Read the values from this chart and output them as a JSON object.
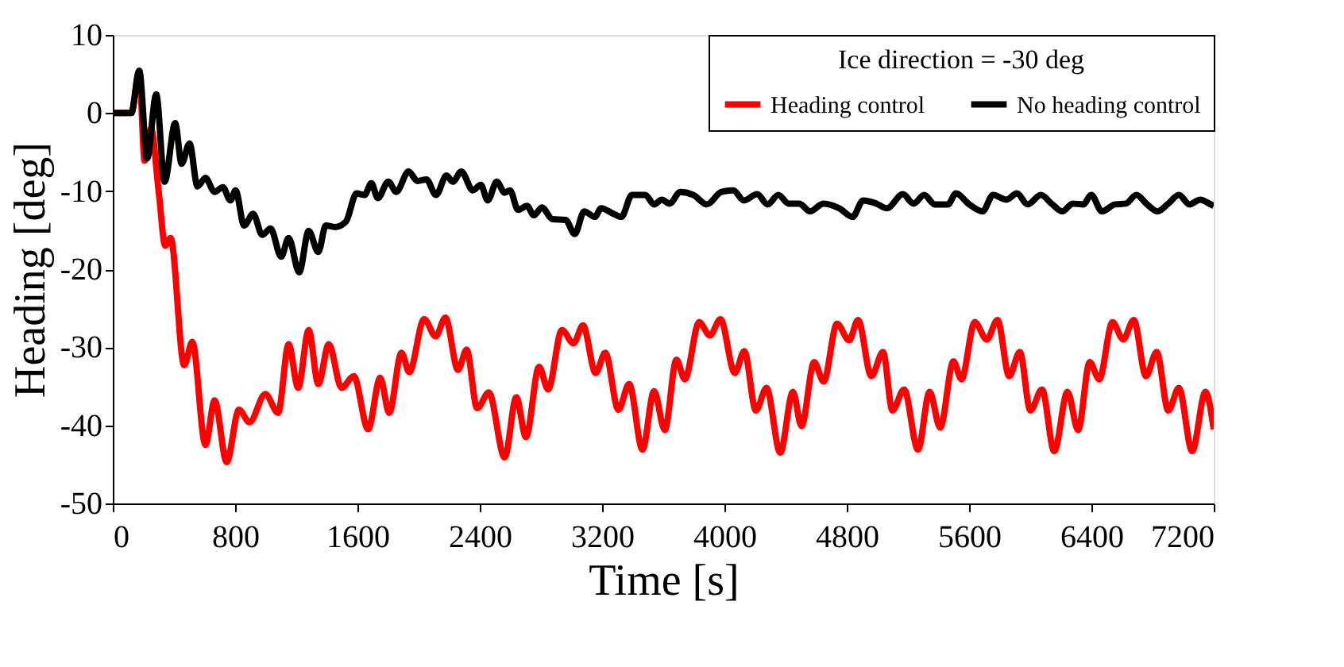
{
  "chart_data": {
    "type": "line",
    "xlabel": "Time [s]",
    "ylabel": "Heading [deg]",
    "legend_title": "Ice direction = -30 deg",
    "legend": "top right",
    "grid": false,
    "line_style": "solid",
    "marker": "none",
    "xlim": [
      0,
      7200
    ],
    "xticks": [
      0,
      800,
      1600,
      2400,
      3200,
      4000,
      4800,
      5600,
      6400,
      7200
    ],
    "ylim": [
      -50,
      10
    ],
    "yticks": [
      -50,
      -40,
      -30,
      -20,
      -10,
      0,
      10
    ],
    "series": [
      {
        "name": "Heading control",
        "color": "#ff0000",
        "x": [
          0,
          121,
          173,
          208,
          250,
          300,
          343,
          378,
          467,
          520,
          606,
          666,
          745,
          825,
          894,
          998,
          1081,
          1150,
          1212,
          1281,
          1344,
          1413,
          1496,
          1576,
          1670,
          1749,
          1808,
          1888,
          1939,
          2036,
          2112,
          2175,
          2258,
          2314,
          2383,
          2459,
          2563,
          2639,
          2702,
          2788,
          2847,
          2937,
          3013,
          3075,
          3158,
          3221,
          3307,
          3377,
          3464,
          3540,
          3610,
          3686,
          3741,
          3835,
          3905,
          3974,
          4068,
          4130,
          4206,
          4275,
          4365,
          4448,
          4504,
          4587,
          4649,
          4736,
          4816,
          4874,
          4961,
          5037,
          5099,
          5175,
          5266,
          5342,
          5411,
          5498,
          5550,
          5637,
          5716,
          5786,
          5862,
          5932,
          6001,
          6077,
          6157,
          6244,
          6313,
          6389,
          6451,
          6538,
          6608,
          6677,
          6757,
          6827,
          6903,
          6972,
          7059,
          7146,
          7200
        ],
        "values": [
          0,
          0,
          5.4,
          -6.1,
          -2,
          -10,
          -17,
          -16,
          -32.3,
          -29.3,
          -42.5,
          -36.8,
          -44.7,
          -38,
          -39.6,
          -36,
          -38.4,
          -29.6,
          -35.2,
          -27.8,
          -34.7,
          -29.6,
          -35.2,
          -33.7,
          -40.5,
          -33.9,
          -38.4,
          -30.7,
          -33.2,
          -26.4,
          -28.6,
          -26.2,
          -32.9,
          -30.3,
          -37.8,
          -35.8,
          -44.1,
          -36.4,
          -41.5,
          -32.5,
          -35.4,
          -27.8,
          -29.5,
          -27.2,
          -33.3,
          -30.7,
          -38,
          -34.7,
          -43.1,
          -35.6,
          -40.6,
          -31.6,
          -34.1,
          -26.8,
          -28.5,
          -26.4,
          -33.3,
          -30.5,
          -38.1,
          -35.2,
          -43.5,
          -35.7,
          -40.1,
          -31.9,
          -34.4,
          -27,
          -29.1,
          -26.5,
          -33.7,
          -30.6,
          -38.1,
          -35.4,
          -43.1,
          -35.7,
          -40.3,
          -31.8,
          -34.1,
          -26.8,
          -29,
          -26.5,
          -33.7,
          -30.6,
          -38.1,
          -35.4,
          -43.3,
          -35.7,
          -40.6,
          -31.9,
          -34.1,
          -26.8,
          -29,
          -26.5,
          -33.7,
          -30.6,
          -38.1,
          -35.2,
          -43.3,
          -35.7,
          -40.5
        ]
      },
      {
        "name": "No heading control",
        "color": "#000000",
        "x": [
          0,
          121,
          173,
          225,
          284,
          339,
          408,
          450,
          502,
          554,
          606,
          665,
          720,
          769,
          803,
          859,
          918,
          977,
          1032,
          1101,
          1150,
          1219,
          1281,
          1344,
          1393,
          1455,
          1525,
          1594,
          1646,
          1691,
          1733,
          1802,
          1854,
          1934,
          1993,
          2051,
          2114,
          2182,
          2224,
          2279,
          2355,
          2407,
          2452,
          2511,
          2563,
          2598,
          2650,
          2709,
          2754,
          2806,
          2875,
          2962,
          3021,
          3083,
          3152,
          3194,
          3274,
          3326,
          3395,
          3482,
          3540,
          3590,
          3642,
          3711,
          3798,
          3884,
          3981,
          4058,
          4127,
          4214,
          4283,
          4352,
          4421,
          4490,
          4560,
          4647,
          4751,
          4838,
          4907,
          4994,
          5063,
          5167,
          5237,
          5306,
          5376,
          5462,
          5514,
          5601,
          5688,
          5757,
          5844,
          5913,
          5983,
          6070,
          6139,
          6209,
          6278,
          6347,
          6399,
          6469,
          6555,
          6625,
          6694,
          6764,
          6833,
          6903,
          6972,
          7042,
          7111,
          7180,
          7200
        ],
        "values": [
          0,
          0,
          5.4,
          -5.8,
          2.4,
          -8.8,
          -1.3,
          -6.5,
          -3.9,
          -9.4,
          -8.3,
          -10.1,
          -9.5,
          -11.2,
          -9.9,
          -14.4,
          -12.9,
          -15.6,
          -14.8,
          -18.4,
          -16,
          -20.4,
          -15.1,
          -17.8,
          -14.4,
          -14.6,
          -13.9,
          -10.3,
          -10.5,
          -9,
          -10.9,
          -8.8,
          -10.1,
          -7.5,
          -8.7,
          -8.5,
          -10.5,
          -8,
          -8.8,
          -7.5,
          -9.9,
          -9.2,
          -11.2,
          -8.8,
          -10.2,
          -9.9,
          -12.4,
          -11.9,
          -13.1,
          -12.1,
          -13.6,
          -13.7,
          -15.5,
          -12.6,
          -13.3,
          -12.2,
          -12.9,
          -13.3,
          -10.5,
          -10.5,
          -11.7,
          -11.1,
          -11.6,
          -10.1,
          -10.5,
          -11.7,
          -10.1,
          -9.9,
          -11.2,
          -10.4,
          -11.7,
          -10.5,
          -11.6,
          -11.6,
          -12.6,
          -11.6,
          -12.2,
          -13.3,
          -11.2,
          -11.6,
          -12.2,
          -10.4,
          -11.6,
          -10.5,
          -11.7,
          -11.7,
          -10.3,
          -11.7,
          -12.6,
          -10.5,
          -11.1,
          -10.3,
          -11.7,
          -10.5,
          -11.6,
          -12.6,
          -11.6,
          -11.7,
          -10.5,
          -12.6,
          -11.7,
          -11.6,
          -10.5,
          -11.7,
          -12.6,
          -11.6,
          -10.5,
          -11.7,
          -11.1,
          -11.7,
          -11.9
        ]
      }
    ]
  }
}
